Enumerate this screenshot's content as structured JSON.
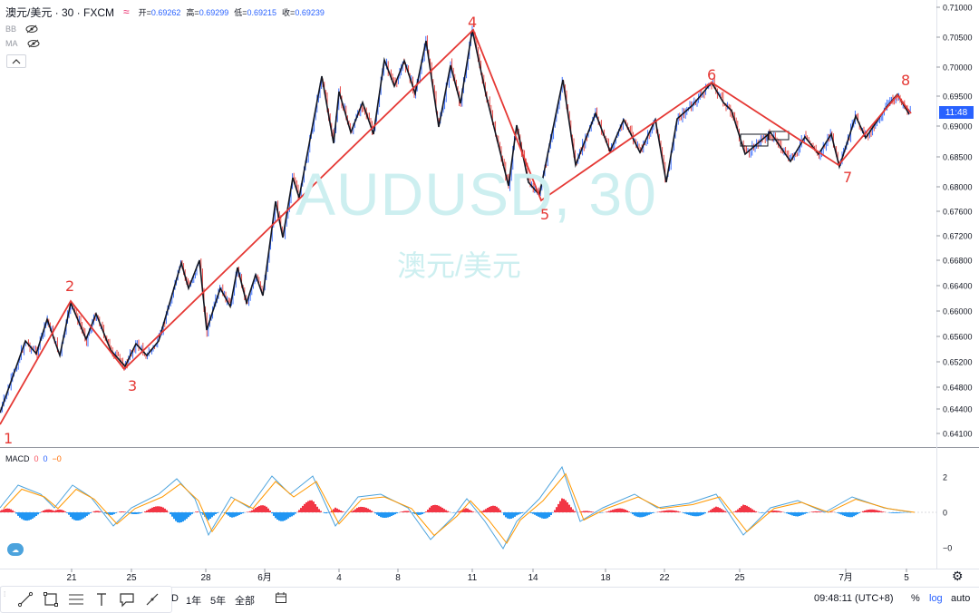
{
  "header": {
    "symbol_title": "澳元/美元 · 30 · FXCM",
    "open_label": "开=",
    "open_value": "0.69262",
    "high_label": "高=",
    "high_value": "0.69299",
    "low_label": "低=",
    "low_value": "0.69215",
    "close_label": "收=",
    "close_value": "0.69239",
    "indicator_1": "BB",
    "indicator_2": "MA",
    "collapse_icon": "chevron-up-icon"
  },
  "watermark": {
    "symbol": "AUDUSD, 30",
    "name": "澳元/美元"
  },
  "price_axis": {
    "labels": [
      "0.71000",
      "0.70500",
      "0.70000",
      "0.69500",
      "0.69000",
      "0.68500",
      "0.68000",
      "0.67600",
      "0.67200",
      "0.66800",
      "0.66400",
      "0.66000",
      "0.65600",
      "0.65200",
      "0.64800",
      "0.64400",
      "0.64100"
    ],
    "current_price_time": "11:48"
  },
  "time_axis": {
    "labels": [
      "21",
      "25",
      "28",
      "6月",
      "4",
      "8",
      "11",
      "14",
      "18",
      "22",
      "25",
      "7月",
      "5"
    ]
  },
  "wave_labels": [
    "1",
    "2",
    "3",
    "4",
    "5",
    "6",
    "7",
    "8"
  ],
  "macd": {
    "title": "MACD",
    "value_1": "0",
    "value_2": "0",
    "value_3": "−0",
    "axis_labels": [
      "2",
      "0",
      "−0"
    ],
    "value_colors": [
      "#f7525f",
      "#2962ff",
      "#ff6d00"
    ]
  },
  "bottom_toolbar": {
    "draw_tool_icons": [
      "line-icon",
      "rectangle-icon",
      "fib-icon",
      "text-icon",
      "comment-icon",
      "brush-icon"
    ],
    "timeframes": [
      "D",
      "1年",
      "5年",
      "全部"
    ],
    "date_range_icon": "calendar-goto-icon",
    "clock": "09:48:11 (UTC+8)",
    "percent": "%",
    "log": "log",
    "auto": "auto"
  },
  "colors": {
    "up_candle": "#2962ff",
    "down_candle": "#e53935",
    "zigzag_minor": "#131722",
    "zigzag_major": "#e53935",
    "watermark": "#cdeff0",
    "price_tag": "#2962ff",
    "macd_positive": "#f23645",
    "macd_negative": "#2196f3"
  }
}
